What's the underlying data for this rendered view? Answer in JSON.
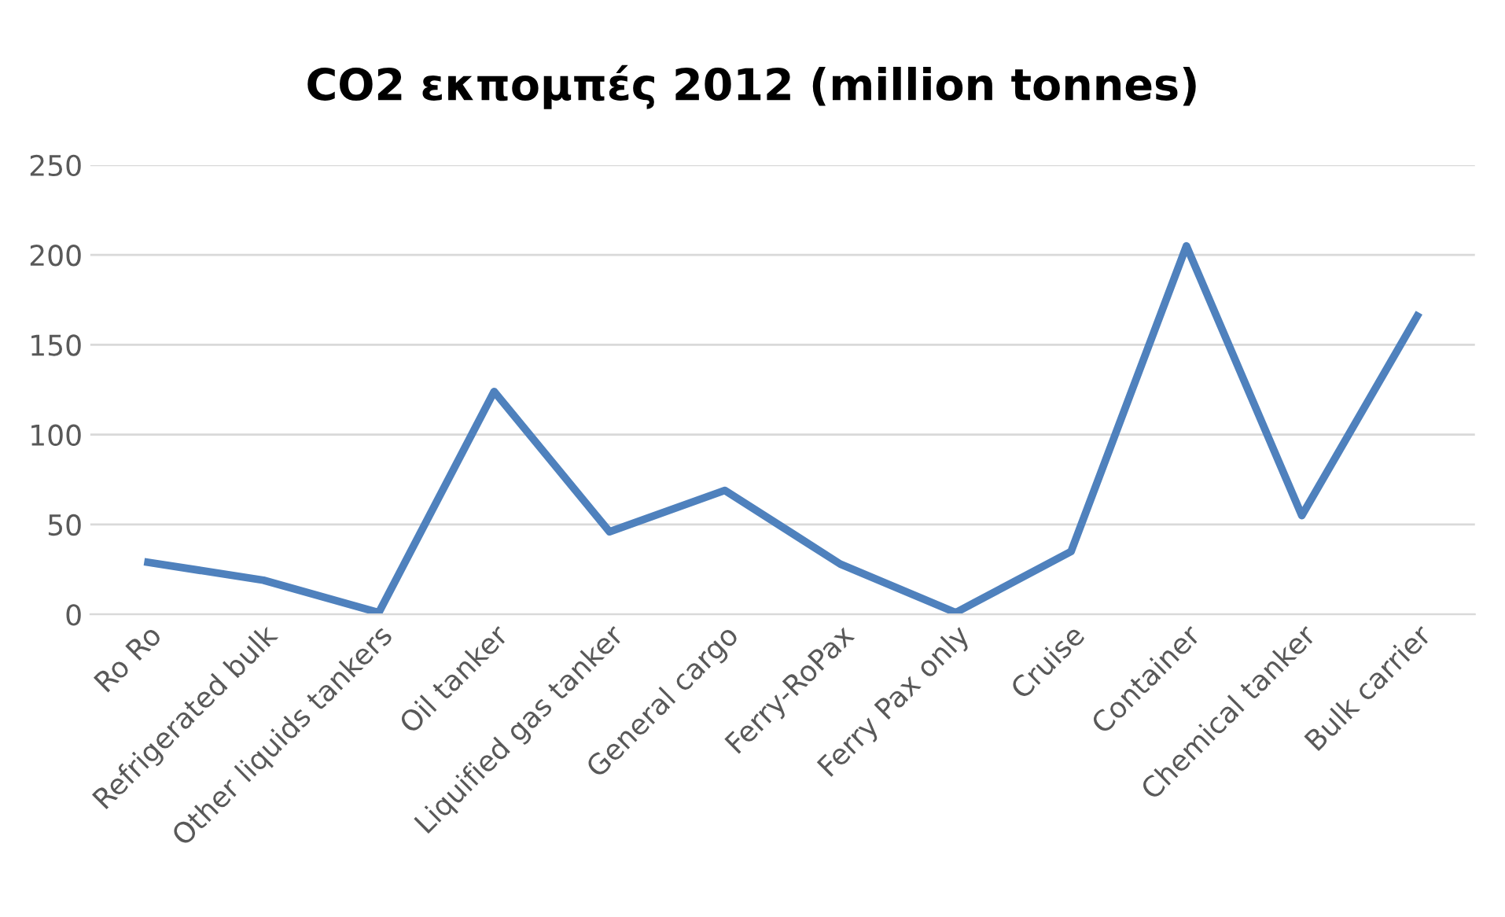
{
  "chart_data": {
    "type": "line",
    "title": "CO2 εκπομπές 2012 (million tonnes)",
    "categories": [
      "Ro Ro",
      "Refrigerated bulk",
      "Other liquids tankers",
      "Oil tanker",
      "Liquified gas tanker",
      "General cargo",
      "Ferry-RoPax",
      "Ferry Pax only",
      "Cruise",
      "Container",
      "Chemical tanker",
      "Bulk carrier"
    ],
    "series": [
      {
        "color": "#4f81bd",
        "values": [
          29,
          19,
          1,
          124,
          46,
          69,
          28,
          1,
          35,
          205,
          55,
          166
        ]
      }
    ],
    "ylim": [
      0,
      250
    ],
    "yticks": [
      0,
      50,
      100,
      150,
      200,
      250
    ],
    "grid": "y",
    "legend": false,
    "marker": "none",
    "line_style": "solid"
  }
}
